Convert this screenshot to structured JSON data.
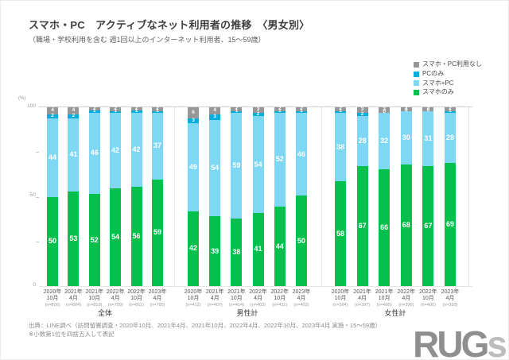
{
  "title": "スマホ・PC　アクティブなネット利用者の推移　〈男女別〉",
  "subtitle": "（職場・学校利用を含む 週1回以上のインターネット利用者、15～59歳）",
  "legend": [
    {
      "label": "スマホ・PC利用なし",
      "color": "#979797"
    },
    {
      "label": "PCのみ",
      "color": "#00aedd"
    },
    {
      "label": "スマホ+PC",
      "color": "#7ed8f4"
    },
    {
      "label": "スマホのみ",
      "color": "#06c04d"
    }
  ],
  "y_axis": {
    "unit": "(%)",
    "tick_labels": [
      "100",
      "50",
      "0"
    ]
  },
  "chart_data": {
    "type": "bar",
    "stacked": true,
    "unit": "%",
    "ylim": [
      0,
      100
    ],
    "y_ticks": [
      0,
      25,
      50,
      75,
      100
    ],
    "series_order_top_to_bottom": [
      "スマホ・PC利用なし",
      "PCのみ",
      "スマホ+PC",
      "スマホのみ"
    ],
    "series_keys": [
      "none",
      "pc-only",
      "smartphone-and-pc",
      "smartphone-only"
    ],
    "series_colors": [
      "#979797",
      "#00aedd",
      "#7ed8f4",
      "#06c04d"
    ],
    "groups": [
      {
        "label": "全体",
        "bars": [
          {
            "year": "2020年",
            "month": "10月",
            "n": "(n=806)",
            "values": [
              4,
              2,
              44,
              50
            ]
          },
          {
            "year": "2021年",
            "month": "4月",
            "n": "(n=804)",
            "values": [
              4,
              2,
              41,
              53
            ]
          },
          {
            "year": "2021年",
            "month": "10月",
            "n": "(n=819)",
            "values": [
              2,
              1,
              46,
              52
            ]
          },
          {
            "year": "2022年",
            "month": "4月",
            "n": "(n=799)",
            "values": [
              2,
              1,
              42,
              54
            ]
          },
          {
            "year": "2022年",
            "month": "10月",
            "n": "(n=811)",
            "values": [
              2,
              1,
              42,
              56
            ]
          },
          {
            "year": "2023年",
            "month": "4月",
            "n": "(n=795)",
            "values": [
              2,
              1,
              37,
              59
            ]
          }
        ]
      },
      {
        "label": "男性計",
        "bars": [
          {
            "year": "2020年",
            "month": "10月",
            "n": "(n=412)",
            "values": [
              6,
              3,
              49,
              42
            ]
          },
          {
            "year": "2021年",
            "month": "4月",
            "n": "(n=407)",
            "values": [
              4,
              3,
              54,
              39
            ]
          },
          {
            "year": "2021年",
            "month": "10月",
            "n": "(n=414)",
            "values": [
              2,
              1,
              59,
              38
            ]
          },
          {
            "year": "2022年",
            "month": "4月",
            "n": "(n=403)",
            "values": [
              3,
              2,
              54,
              41
            ]
          },
          {
            "year": "2022年",
            "month": "10月",
            "n": "(n=411)",
            "values": [
              2,
              1,
              52,
              44
            ]
          },
          {
            "year": "2023年",
            "month": "4月",
            "n": "(n=402)",
            "values": [
              2,
              1,
              46,
              50
            ]
          }
        ]
      },
      {
        "label": "女性計",
        "bars": [
          {
            "year": "2020年",
            "month": "10月",
            "n": "(n=394)",
            "values": [
              2,
              1,
              38,
              58
            ]
          },
          {
            "year": "2021年",
            "month": "4月",
            "n": "(n=397)",
            "values": [
              3,
              2,
              28,
              67
            ]
          },
          {
            "year": "2021年",
            "month": "10月",
            "n": "(n=405)",
            "values": [
              3,
              0,
              32,
              66
            ]
          },
          {
            "year": "2022年",
            "month": "4月",
            "n": "(n=396)",
            "values": [
              2,
              0,
              30,
              68
            ]
          },
          {
            "year": "2022年",
            "month": "10月",
            "n": "(n=400)",
            "values": [
              2,
              0,
              31,
              67
            ]
          },
          {
            "year": "2023年",
            "month": "4月",
            "n": "(n=393)",
            "values": [
              2,
              1,
              28,
              69
            ]
          }
        ]
      }
    ]
  },
  "footnotes": [
    "出典：LINE調べ（訪問留置調査・2020年10月、2021年4月、2021年10月、2022年4月、2022年10月、2023年4月 実施・15～59歳）",
    "※小数第1位を四捨五入して表記"
  ],
  "logo": {
    "dark": "RUG",
    "light": "s"
  }
}
